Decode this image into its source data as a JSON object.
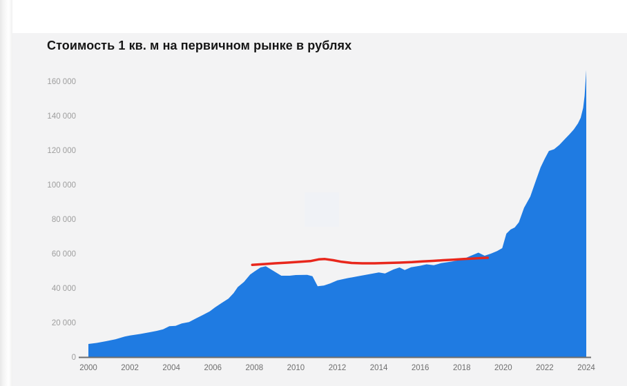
{
  "style": {
    "page_background": "#ffffff",
    "card_background": "#f3f3f4",
    "area_color": "#1f7be2",
    "trend_color": "#e8271c",
    "title_color": "#161616",
    "y_label_color": "#9d9d9d",
    "x_label_color": "#6e6e6e",
    "axis_line_color": "#6e6e6e",
    "watermark_color": "#f0f2f6"
  },
  "chart_data": {
    "type": "area",
    "title": "Стоимость 1 кв. м на первичном рынке в рублях",
    "xlabel": "",
    "ylabel": "",
    "x_range": [
      2000,
      2024
    ],
    "y_range": [
      0,
      160000
    ],
    "grid": false,
    "legend": false,
    "x_tick_values": [
      2000,
      2002,
      2004,
      2006,
      2008,
      2010,
      2012,
      2014,
      2016,
      2018,
      2020,
      2022,
      2024
    ],
    "x_tick_labels": [
      "2000",
      "2002",
      "2004",
      "2006",
      "2008",
      "2010",
      "2012",
      "2014",
      "2016",
      "2018",
      "2020",
      "2022",
      "2024"
    ],
    "y_tick_values": [
      0,
      20000,
      40000,
      60000,
      80000,
      100000,
      120000,
      140000,
      160000
    ],
    "y_tick_labels": [
      "0",
      "20 000",
      "40 000",
      "60 000",
      "80 000",
      "100 000",
      "120 000",
      "140 000",
      "160 000"
    ],
    "series": [
      {
        "name": "price-per-sqm-area",
        "type": "area",
        "color": "#1f7be2",
        "points": [
          [
            2000.0,
            8000
          ],
          [
            2000.4,
            8600
          ],
          [
            2000.85,
            9600
          ],
          [
            2001.3,
            10700
          ],
          [
            2001.75,
            12300
          ],
          [
            2002.0,
            12900
          ],
          [
            2002.5,
            13800
          ],
          [
            2003.0,
            14900
          ],
          [
            2003.3,
            15600
          ],
          [
            2003.6,
            16500
          ],
          [
            2003.9,
            18300
          ],
          [
            2004.2,
            18500
          ],
          [
            2004.5,
            19900
          ],
          [
            2004.85,
            20700
          ],
          [
            2005.2,
            22900
          ],
          [
            2005.5,
            24700
          ],
          [
            2005.85,
            26900
          ],
          [
            2006.1,
            29200
          ],
          [
            2006.4,
            31600
          ],
          [
            2006.75,
            34300
          ],
          [
            2007.0,
            37500
          ],
          [
            2007.2,
            41000
          ],
          [
            2007.5,
            44000
          ],
          [
            2007.8,
            48300
          ],
          [
            2008.0,
            50000
          ],
          [
            2008.3,
            52400
          ],
          [
            2008.55,
            53100
          ],
          [
            2009.0,
            49800
          ],
          [
            2009.3,
            47600
          ],
          [
            2009.7,
            47600
          ],
          [
            2010.0,
            48000
          ],
          [
            2010.55,
            48100
          ],
          [
            2010.8,
            47300
          ],
          [
            2011.05,
            41500
          ],
          [
            2011.35,
            41900
          ],
          [
            2011.65,
            43100
          ],
          [
            2012.0,
            44900
          ],
          [
            2012.5,
            46200
          ],
          [
            2013.0,
            47300
          ],
          [
            2013.5,
            48400
          ],
          [
            2014.0,
            49500
          ],
          [
            2014.3,
            48900
          ],
          [
            2014.7,
            51200
          ],
          [
            2015.0,
            52400
          ],
          [
            2015.25,
            50900
          ],
          [
            2015.55,
            52500
          ],
          [
            2016.0,
            53400
          ],
          [
            2016.3,
            54200
          ],
          [
            2016.65,
            53700
          ],
          [
            2017.0,
            54900
          ],
          [
            2017.5,
            55800
          ],
          [
            2018.0,
            56900
          ],
          [
            2018.4,
            59000
          ],
          [
            2018.8,
            61000
          ],
          [
            2019.1,
            59200
          ],
          [
            2019.4,
            60400
          ],
          [
            2019.7,
            61900
          ],
          [
            2019.95,
            63600
          ],
          [
            2020.15,
            72000
          ],
          [
            2020.35,
            74400
          ],
          [
            2020.55,
            75600
          ],
          [
            2020.75,
            78600
          ],
          [
            2021.0,
            87000
          ],
          [
            2021.3,
            93500
          ],
          [
            2021.6,
            103800
          ],
          [
            2021.8,
            110500
          ],
          [
            2022.0,
            115500
          ],
          [
            2022.2,
            120000
          ],
          [
            2022.45,
            121000
          ],
          [
            2022.7,
            123500
          ],
          [
            2023.0,
            127300
          ],
          [
            2023.2,
            129800
          ],
          [
            2023.4,
            132500
          ],
          [
            2023.6,
            136000
          ],
          [
            2023.73,
            139200
          ],
          [
            2023.85,
            145000
          ],
          [
            2023.92,
            152000
          ],
          [
            2024.0,
            167000
          ]
        ]
      },
      {
        "name": "red-annotation-trend-line",
        "type": "line",
        "color": "#e8271c",
        "stroke_width": 3.5,
        "points": [
          [
            2007.9,
            53900
          ],
          [
            2008.4,
            54300
          ],
          [
            2009.0,
            54800
          ],
          [
            2009.6,
            55200
          ],
          [
            2010.1,
            55600
          ],
          [
            2010.7,
            56100
          ],
          [
            2011.1,
            57100
          ],
          [
            2011.4,
            57300
          ],
          [
            2011.8,
            56600
          ],
          [
            2012.2,
            55700
          ],
          [
            2012.7,
            55000
          ],
          [
            2013.2,
            54800
          ],
          [
            2013.8,
            54800
          ],
          [
            2014.4,
            55000
          ],
          [
            2015.0,
            55200
          ],
          [
            2015.6,
            55500
          ],
          [
            2016.1,
            55900
          ],
          [
            2016.6,
            56200
          ],
          [
            2017.1,
            56600
          ],
          [
            2017.6,
            56900
          ],
          [
            2018.1,
            57300
          ],
          [
            2018.6,
            57600
          ],
          [
            2019.0,
            57900
          ],
          [
            2019.25,
            58000
          ]
        ]
      }
    ]
  }
}
